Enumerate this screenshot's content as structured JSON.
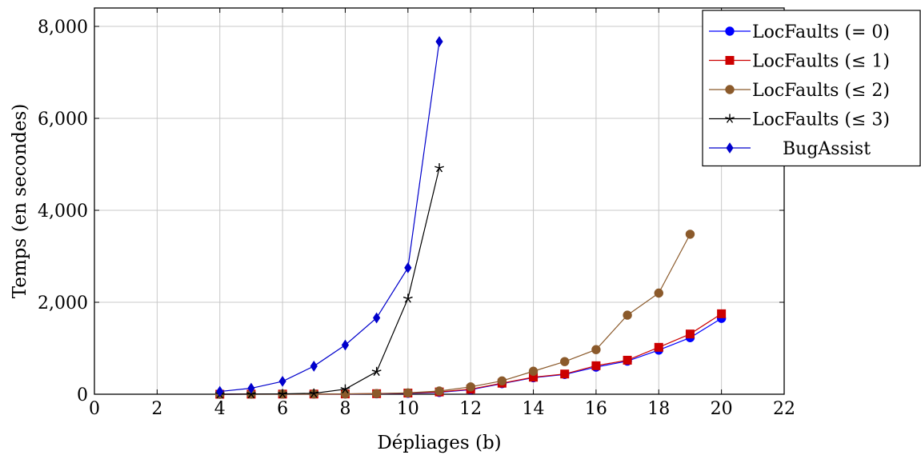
{
  "chart_data": {
    "type": "line",
    "xlabel": "Dépliages (b)",
    "ylabel": "Temps (en secondes)",
    "xlim": [
      0,
      22
    ],
    "ylim": [
      0,
      8400
    ],
    "xticks": [
      0,
      2,
      4,
      6,
      8,
      10,
      12,
      14,
      16,
      18,
      20,
      22
    ],
    "xtick_labels": [
      "0",
      "2",
      "4",
      "6",
      "8",
      "10",
      "12",
      "14",
      "16",
      "18",
      "20",
      "22"
    ],
    "yticks": [
      0,
      2000,
      4000,
      6000,
      8000
    ],
    "ytick_labels": [
      "0",
      "2,000",
      "4,000",
      "6,000",
      "8,000"
    ],
    "grid": true,
    "legend_position": "top-right",
    "series": [
      {
        "name": "LocFaults (= 0)",
        "color": "#0000ff",
        "marker": "circle",
        "x": [
          4,
          5,
          6,
          7,
          8,
          9,
          10,
          11,
          12,
          13,
          14,
          15,
          16,
          17,
          18,
          19,
          20
        ],
        "y": [
          0,
          2,
          3,
          4,
          6,
          10,
          20,
          40,
          100,
          230,
          360,
          430,
          590,
          720,
          960,
          1230,
          1650
        ]
      },
      {
        "name": "LocFaults (≤ 1)",
        "color": "#cc0000",
        "marker": "square",
        "x": [
          4,
          5,
          6,
          7,
          8,
          9,
          10,
          11,
          12,
          13,
          14,
          15,
          16,
          17,
          18,
          19,
          20
        ],
        "y": [
          0,
          2,
          3,
          4,
          6,
          12,
          25,
          50,
          110,
          240,
          370,
          440,
          620,
          740,
          1020,
          1310,
          1750
        ]
      },
      {
        "name": "LocFaults (≤ 2)",
        "color": "#8b5a2b",
        "marker": "circle",
        "x": [
          4,
          5,
          6,
          7,
          8,
          9,
          10,
          11,
          12,
          13,
          14,
          15,
          16,
          17,
          18,
          19
        ],
        "y": [
          0,
          2,
          4,
          5,
          8,
          15,
          30,
          70,
          160,
          290,
          500,
          710,
          970,
          1720,
          2200,
          3480
        ]
      },
      {
        "name": "LocFaults (≤ 3)",
        "color": "#000000",
        "marker": "star",
        "x": [
          4,
          5,
          6,
          7,
          8,
          9,
          10,
          11
        ],
        "y": [
          0,
          3,
          8,
          20,
          110,
          490,
          2080,
          4920
        ]
      },
      {
        "name": "BugAssist",
        "color": "#0000cc",
        "marker": "diamond",
        "x": [
          4,
          5,
          6,
          7,
          8,
          9,
          10,
          11
        ],
        "y": [
          60,
          130,
          280,
          610,
          1070,
          1660,
          2750,
          7670
        ]
      }
    ]
  }
}
